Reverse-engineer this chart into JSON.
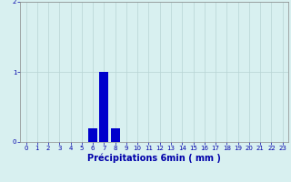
{
  "xlabel": "Précipitations 6min ( mm )",
  "ylabel": "",
  "xlim": [
    -0.5,
    23.5
  ],
  "ylim": [
    0,
    2
  ],
  "yticks": [
    0,
    1,
    2
  ],
  "xticks": [
    0,
    1,
    2,
    3,
    4,
    5,
    6,
    7,
    8,
    9,
    10,
    11,
    12,
    13,
    14,
    15,
    16,
    17,
    18,
    19,
    20,
    21,
    22,
    23
  ],
  "bar_positions": [
    6,
    7,
    8
  ],
  "bar_values": [
    0.2,
    1.0,
    0.2
  ],
  "bar_color": "#0000cc",
  "bar_width": 0.8,
  "background_color": "#d8f0f0",
  "grid_color": "#b8d4d4",
  "tick_color": "#0000aa",
  "axis_color": "#888888",
  "tick_fontsize": 5.0,
  "xlabel_fontsize": 7.0
}
